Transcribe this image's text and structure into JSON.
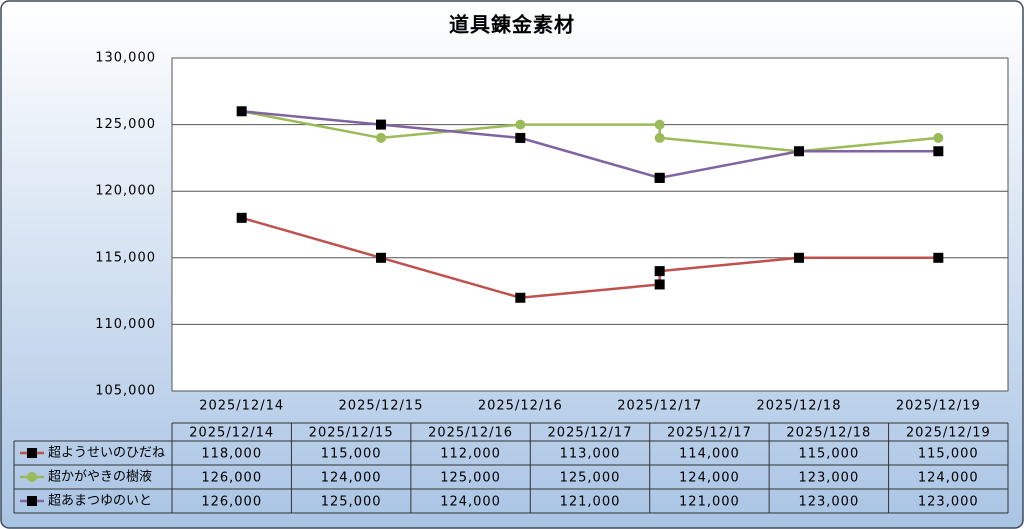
{
  "chart_data": {
    "type": "line",
    "title": "道具錬金素材",
    "x": [
      "2025/12/14",
      "2025/12/15",
      "2025/12/16",
      "2025/12/17",
      "2025/12/17",
      "2025/12/18",
      "2025/12/19"
    ],
    "xticks": [
      "2025/12/14",
      "2025/12/15",
      "2025/12/16",
      "2025/12/17",
      "2025/12/18",
      "2025/12/19"
    ],
    "ylim": [
      105000,
      130000
    ],
    "yticks": [
      {
        "value": 105000,
        "label": "105,000"
      },
      {
        "value": 110000,
        "label": "110,000"
      },
      {
        "value": 115000,
        "label": "115,000"
      },
      {
        "value": 120000,
        "label": "120,000"
      },
      {
        "value": 125000,
        "label": "125,000"
      },
      {
        "value": 130000,
        "label": "130,000"
      }
    ],
    "grid": true,
    "series": [
      {
        "name": "超ようせいのひだね",
        "color": "#c0504d",
        "marker": "square",
        "values": [
          118000,
          115000,
          112000,
          113000,
          114000,
          115000,
          115000
        ],
        "value_labels": [
          "118,000",
          "115,000",
          "112,000",
          "113,000",
          "114,000",
          "115,000",
          "115,000"
        ]
      },
      {
        "name": "超かがやきの樹液",
        "color": "#9bbb59",
        "marker": "circle",
        "values": [
          126000,
          124000,
          125000,
          125000,
          124000,
          123000,
          124000
        ],
        "value_labels": [
          "126,000",
          "124,000",
          "125,000",
          "125,000",
          "124,000",
          "123,000",
          "124,000"
        ]
      },
      {
        "name": "超あまつゆのいと",
        "color": "#8064a2",
        "marker": "square",
        "values": [
          126000,
          125000,
          124000,
          121000,
          121000,
          123000,
          123000
        ],
        "value_labels": [
          "126,000",
          "125,000",
          "124,000",
          "121,000",
          "121,000",
          "123,000",
          "123,000"
        ]
      }
    ]
  }
}
